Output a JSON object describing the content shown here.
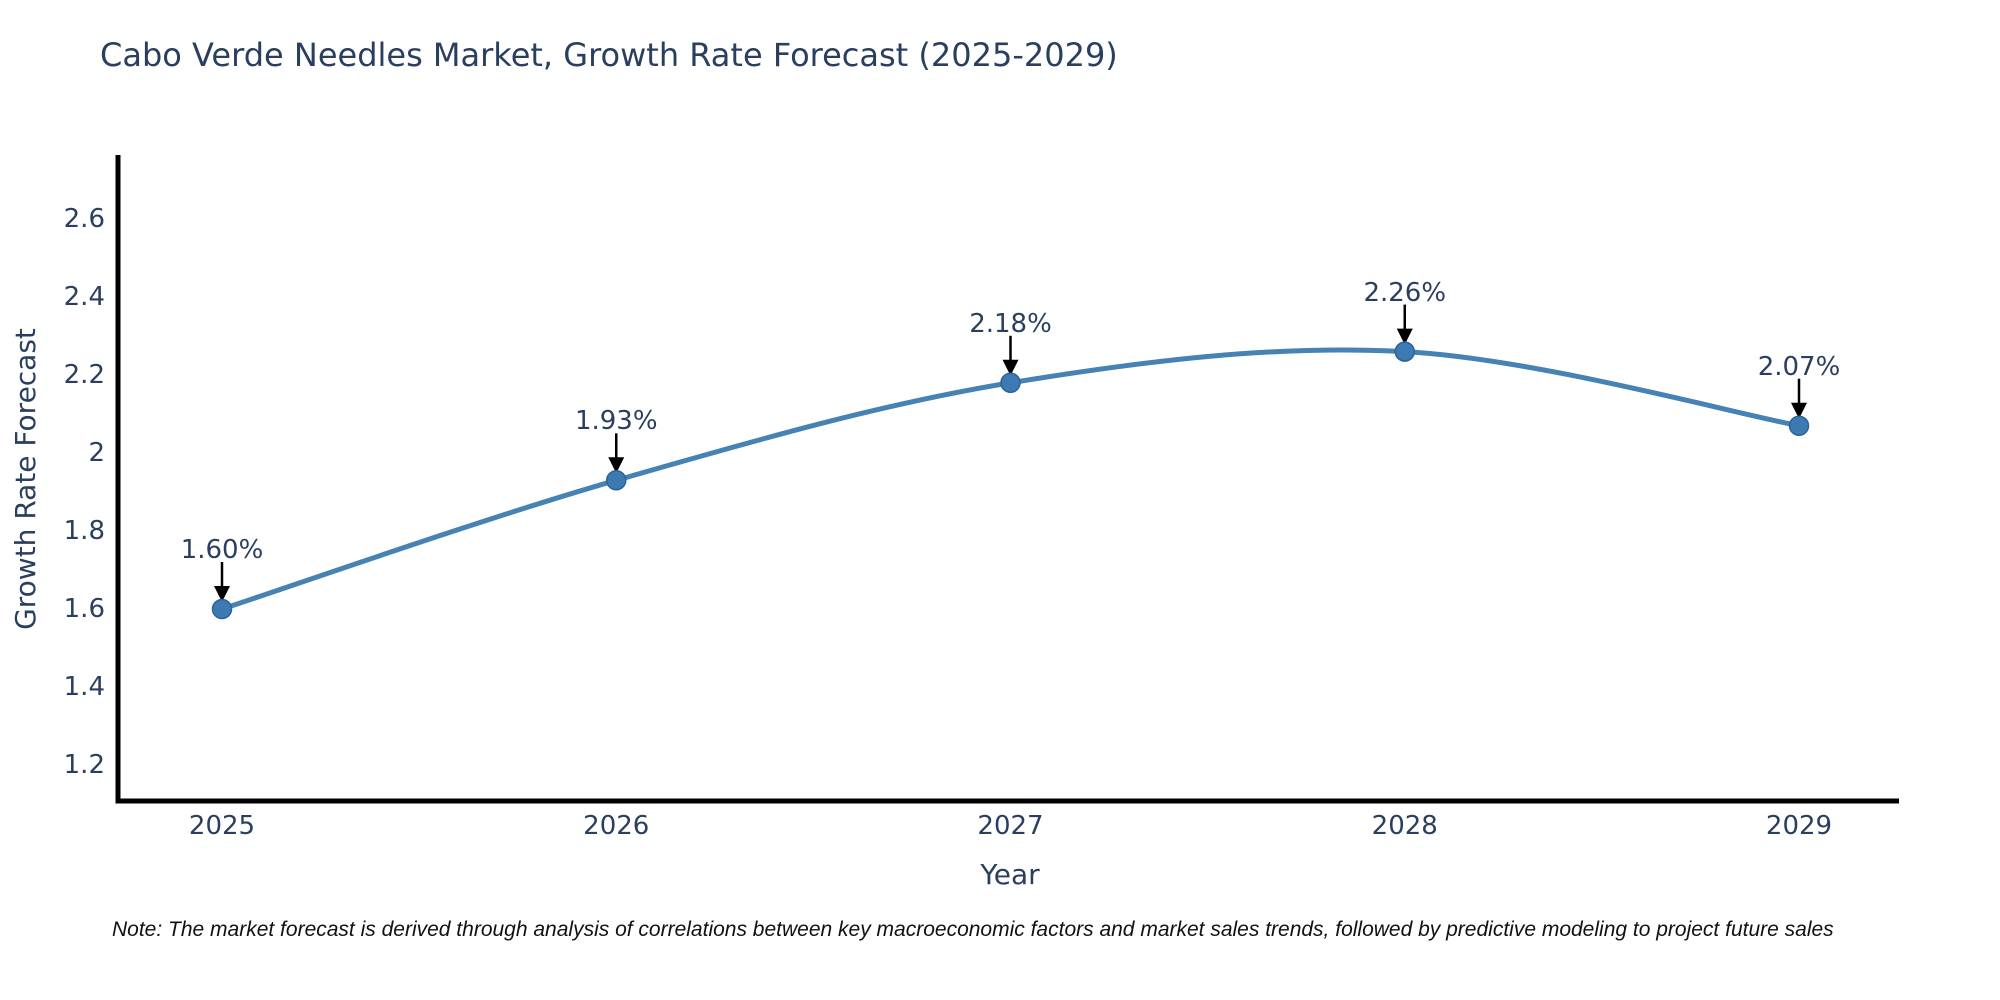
{
  "title": "Cabo Verde Needles Market, Growth Rate Forecast (2025-2029)",
  "note": "Note: The market forecast is derived through analysis of correlations between key macroeconomic factors and market sales trends, followed by predictive modeling to project future sales",
  "chart_data": {
    "type": "line",
    "title": "Cabo Verde Needles Market, Growth Rate Forecast (2025-2029)",
    "x": [
      2025,
      2026,
      2027,
      2028,
      2029
    ],
    "series": [
      {
        "name": "Growth Rate Forecast",
        "values": [
          1.6,
          1.93,
          2.18,
          2.26,
          2.07
        ]
      }
    ],
    "point_labels": [
      "1.60%",
      "1.93%",
      "2.18%",
      "2.26%",
      "2.07%"
    ],
    "xlabel": "Year",
    "ylabel": "Growth Rate Forecast",
    "xtick_labels": [
      "2025",
      "2026",
      "2027",
      "2028",
      "2029"
    ],
    "yticks": [
      1.2,
      1.4,
      1.6,
      1.8,
      2.0,
      2.2,
      2.4,
      2.6
    ],
    "ytick_labels": [
      "1.2",
      "1.4",
      "1.6",
      "1.8",
      "2",
      "2.2",
      "2.4",
      "2.6"
    ],
    "ylim": [
      1.108,
      2.77
    ],
    "grid": false,
    "legend_position": "none",
    "line_shape": "spline",
    "annotation_style": "value label with downward arrow to marker",
    "colors": {
      "line": "#4682b4",
      "marker_fill": "#3d7ab4",
      "marker_edge": "#2a6398",
      "axis_line": "#000000",
      "chart_text": "#2a3f5f",
      "arrow": "#000000",
      "note_text": "#111111",
      "background": "#ffffff"
    }
  }
}
